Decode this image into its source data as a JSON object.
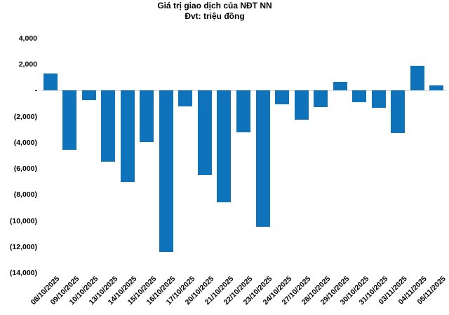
{
  "chart_data": {
    "type": "bar",
    "title": "Giá trị giao dịch của NĐT NN",
    "subtitle": "Đvt: triệu đồng",
    "categories": [
      "08/10/2025",
      "09/10/2025",
      "10/10/2025",
      "13/10/2025",
      "14/10/2025",
      "15/10/2025",
      "16/10/2025",
      "17/10/2025",
      "20/10/2025",
      "21/10/2025",
      "22/10/2025",
      "23/10/2025",
      "24/10/2025",
      "27/10/2025",
      "28/10/2025",
      "29/10/2025",
      "30/10/2025",
      "31/10/2025",
      "03/11/2025",
      "04/11/2025",
      "05/11/2025"
    ],
    "values": [
      1300,
      -4550,
      -730,
      -5450,
      -7000,
      -3930,
      -12400,
      -1230,
      -6480,
      -8560,
      -3220,
      -10460,
      -1030,
      -2240,
      -1250,
      670,
      -880,
      -1340,
      -3240,
      1900,
      400
    ],
    "xlabel": "",
    "ylabel": "",
    "ylim": [
      -14000,
      4000
    ],
    "ytick_interval": 2000,
    "yticks": [
      {
        "value": 4000,
        "label": "4,000"
      },
      {
        "value": 2000,
        "label": "2,000"
      },
      {
        "value": 0,
        "label": "-"
      },
      {
        "value": -2000,
        "label": "(2,000)"
      },
      {
        "value": -4000,
        "label": "(4,000)"
      },
      {
        "value": -6000,
        "label": "(6,000)"
      },
      {
        "value": -8000,
        "label": "(8,000)"
      },
      {
        "value": -10000,
        "label": "(10,000)"
      },
      {
        "value": -12000,
        "label": "(12,000)"
      },
      {
        "value": -14000,
        "label": "(14,000)"
      }
    ],
    "legend": "none",
    "grid": "zero-line-only",
    "x_label_rotation_deg": 45,
    "colors": {
      "bar": "#0e73bb",
      "zero_line": "#d9d9d9",
      "text": "#000000",
      "background": "#ffffff"
    }
  }
}
